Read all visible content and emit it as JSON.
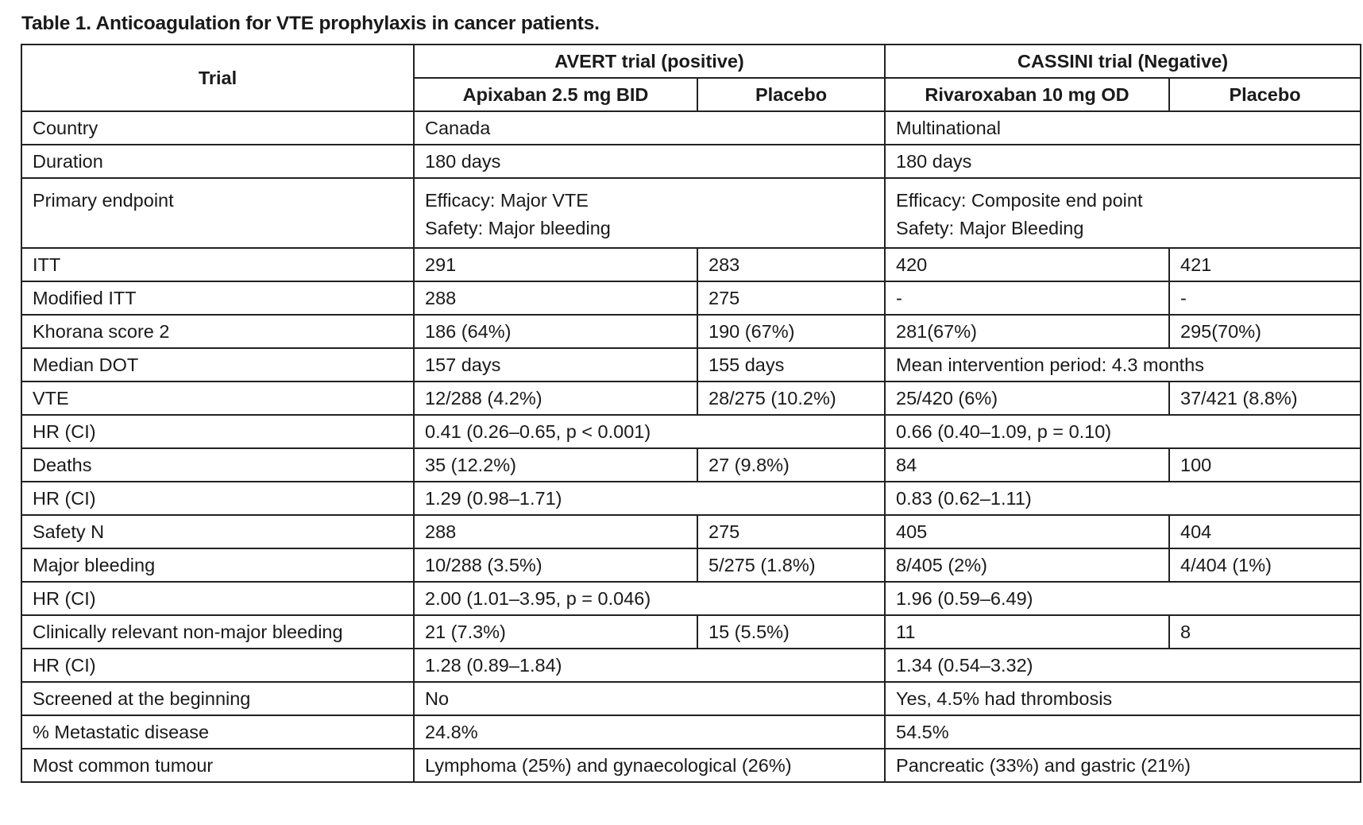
{
  "caption": "Table 1. Anticoagulation for VTE prophylaxis in cancer patients.",
  "header": {
    "trial_label": "Trial",
    "avert": "AVERT trial (positive)",
    "cassini": "CASSINI trial (Negative)",
    "avert_arm1": "Apixaban 2.5 mg BID",
    "avert_arm2": "Placebo",
    "cassini_arm1": "Rivaroxaban 10 mg OD",
    "cassini_arm2": "Placebo"
  },
  "rows": [
    {
      "label": "Country",
      "avert": "Canada",
      "cassini": "Multinational"
    },
    {
      "label": "Duration",
      "avert": "180 days",
      "cassini": "180 days"
    },
    {
      "label": "Primary endpoint",
      "avert_lines": [
        "Efficacy: Major VTE",
        "Safety: Major bleeding"
      ],
      "cassini_lines": [
        "Efficacy: Composite end point",
        "Safety: Major Bleeding"
      ]
    },
    {
      "label": "ITT",
      "a1": "291",
      "a2": "283",
      "c1": "420",
      "c2": "421"
    },
    {
      "label": "Modified ITT",
      "a1": "288",
      "a2": "275",
      "c1": "-",
      "c2": "-"
    },
    {
      "label": "Khorana score 2",
      "a1": "186 (64%)",
      "a2": "190 (67%)",
      "c1": "281(67%)",
      "c2": "295(70%)"
    },
    {
      "label": "Median DOT",
      "a1": "157 days",
      "a2": "155 days",
      "cassini": "Mean intervention period: 4.3 months"
    },
    {
      "label": "VTE",
      "a1": "12/288 (4.2%)",
      "a2": "28/275 (10.2%)",
      "c1": "25/420 (6%)",
      "c2": "37/421 (8.8%)"
    },
    {
      "label": "HR (CI)",
      "avert": "0.41 (0.26–0.65, p < 0.001)",
      "cassini": "0.66 (0.40–1.09, p = 0.10)"
    },
    {
      "label": "Deaths",
      "a1": "35 (12.2%)",
      "a2": "27 (9.8%)",
      "c1": "84",
      "c2": "100"
    },
    {
      "label": "HR (CI)",
      "avert": "1.29 (0.98–1.71)",
      "cassini": "0.83 (0.62–1.11)"
    },
    {
      "label": "Safety N",
      "a1": "288",
      "a2": "275",
      "c1": "405",
      "c2": "404"
    },
    {
      "label": "Major bleeding",
      "a1": "10/288 (3.5%)",
      "a2": "5/275 (1.8%)",
      "c1": "8/405 (2%)",
      "c2": "4/404 (1%)"
    },
    {
      "label": "HR (CI)",
      "avert": "2.00 (1.01–3.95, p = 0.046)",
      "cassini": "1.96 (0.59–6.49)"
    },
    {
      "label": "Clinically relevant non-major bleeding",
      "a1": "21 (7.3%)",
      "a2": "15 (5.5%)",
      "c1": "11",
      "c2": "8"
    },
    {
      "label": "HR (CI)",
      "avert": "1.28 (0.89–1.84)",
      "cassini": "1.34 (0.54–3.32)"
    },
    {
      "label": "Screened at the beginning",
      "avert": "No",
      "cassini": "Yes, 4.5% had thrombosis"
    },
    {
      "label": "% Metastatic disease",
      "avert": "24.8%",
      "cassini": "54.5%"
    },
    {
      "label": "Most common tumour",
      "avert": "Lymphoma (25%) and gynaecological (26%)",
      "cassini": "Pancreatic (33%) and gastric (21%)"
    }
  ]
}
